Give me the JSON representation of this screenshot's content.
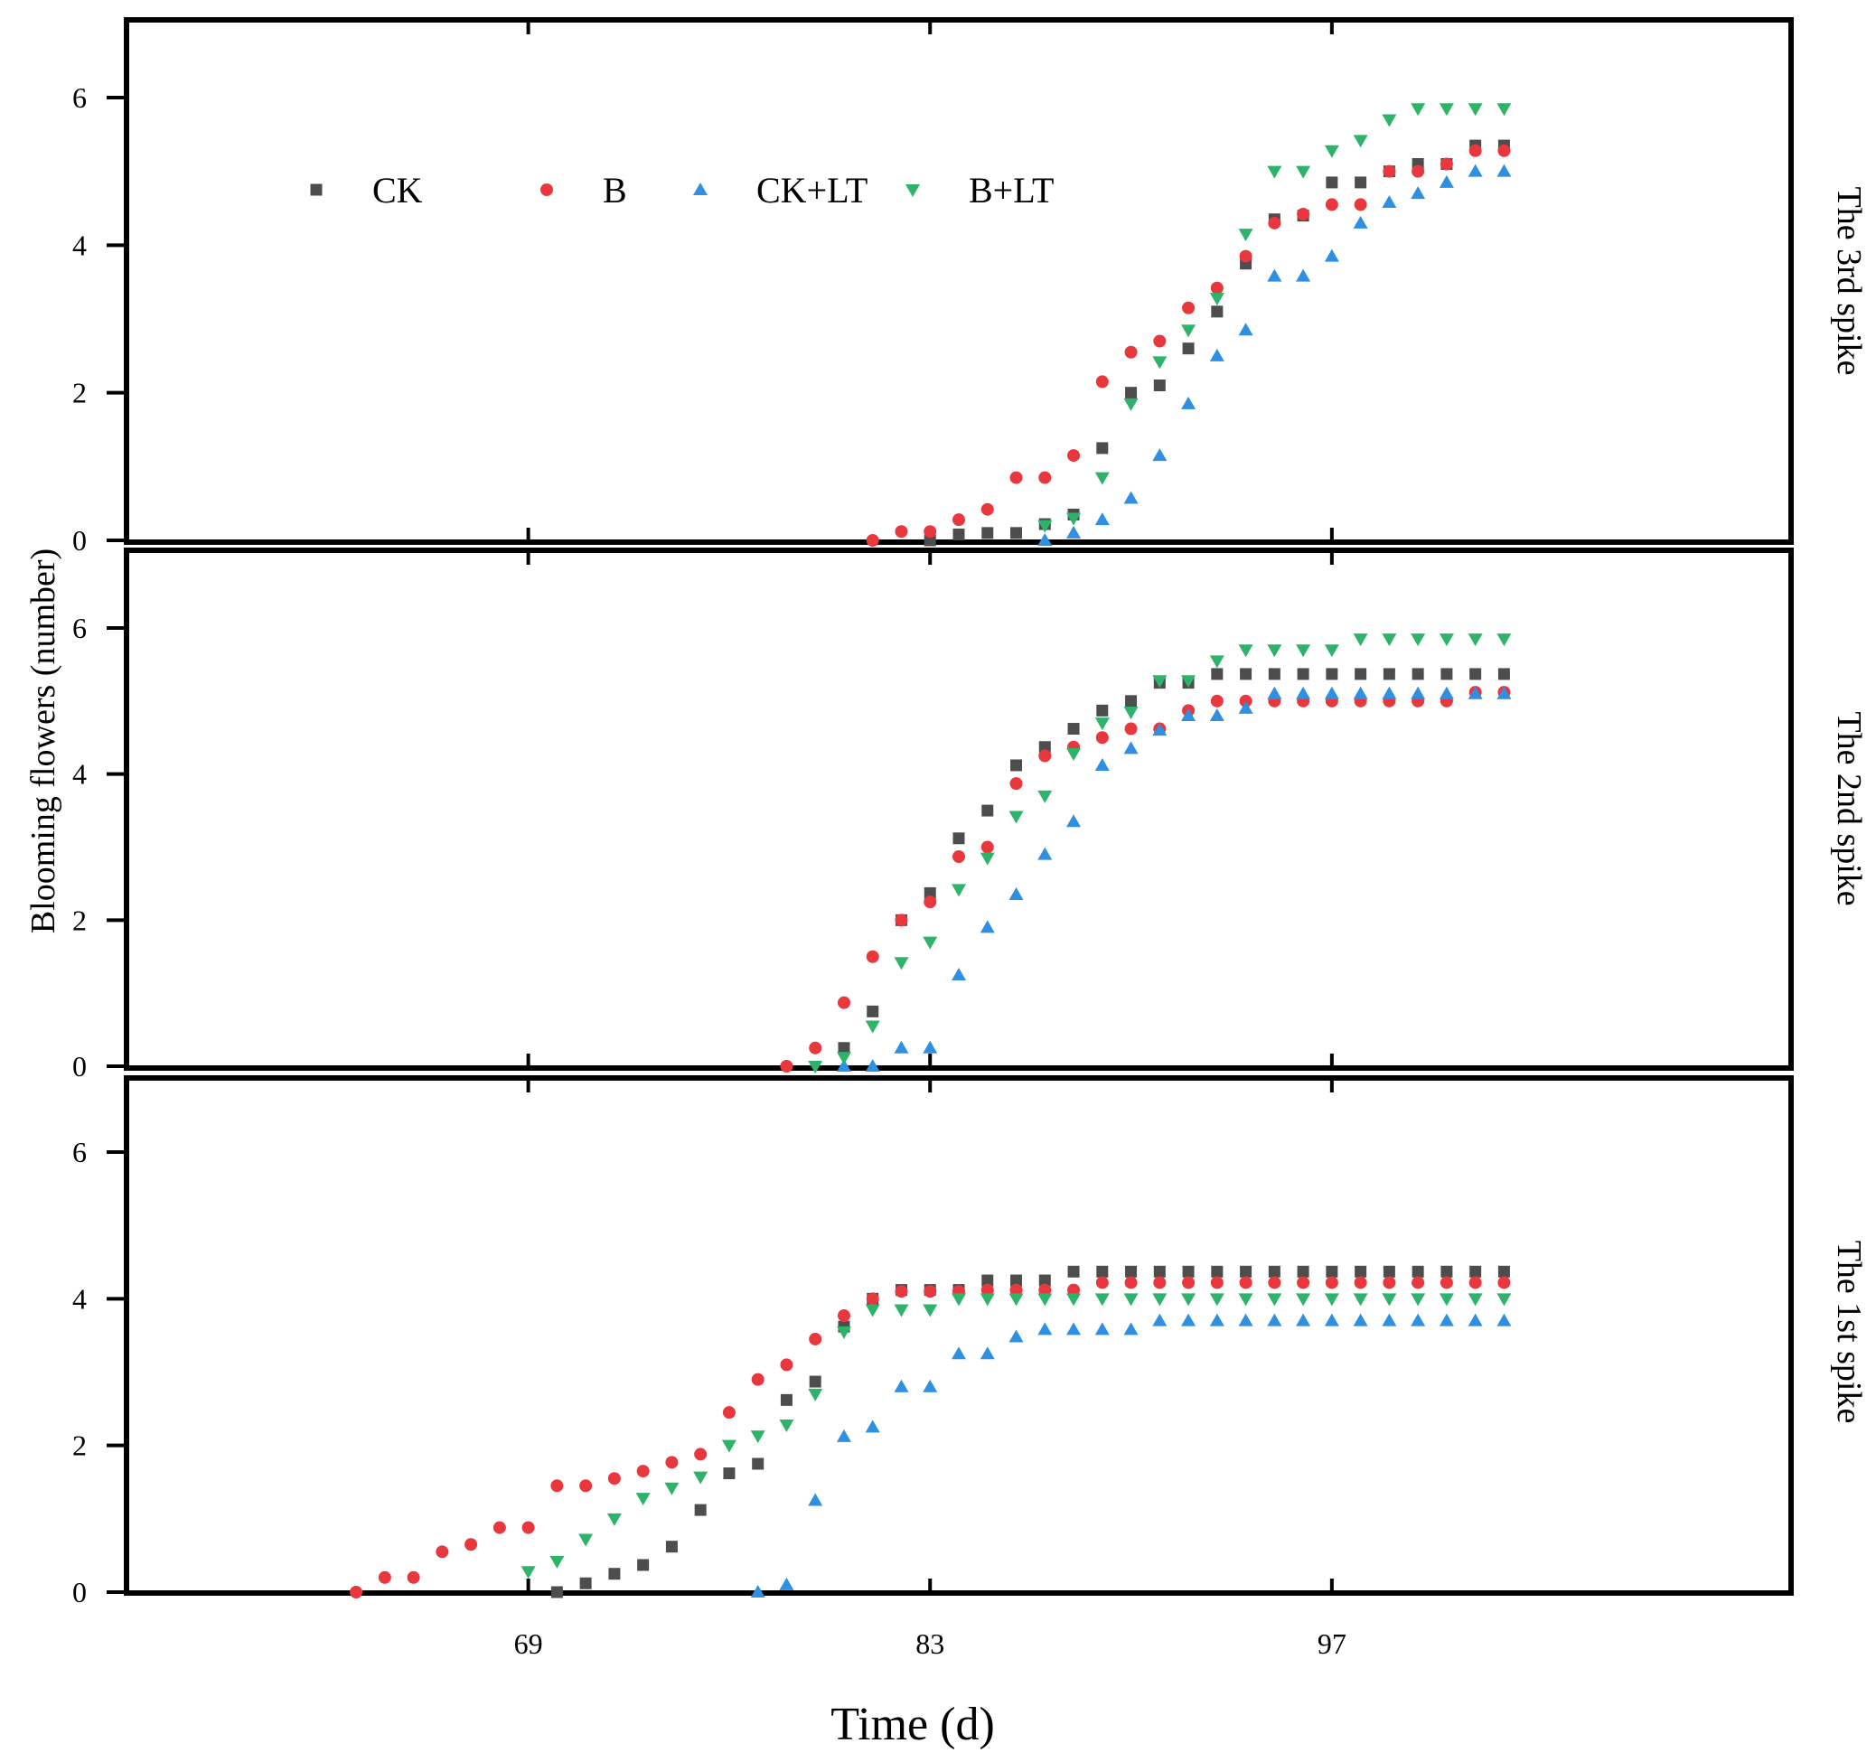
{
  "chart_data": {
    "type": "scatter",
    "xlabel": "Time (d)",
    "ylabel": "Blooming flowers (number)",
    "x_ticks": [
      69,
      83,
      97
    ],
    "xlim": [
      55,
      113
    ],
    "ylim": [
      0,
      7
    ],
    "y_ticks": [
      0,
      2,
      4,
      6
    ],
    "series_meta": [
      {
        "name": "CK",
        "color": "#4d4d4d",
        "marker": "square"
      },
      {
        "name": "B",
        "color": "#e8383d",
        "marker": "circle"
      },
      {
        "name": "CK+LT",
        "color": "#2f8fe0",
        "marker": "triangle-up"
      },
      {
        "name": "B+LT",
        "color": "#2eb36a",
        "marker": "triangle-down"
      }
    ],
    "legend": {
      "location": "top-left of top panel",
      "labels": [
        "CK",
        "B",
        "CK+LT",
        "B+LT"
      ]
    },
    "panels": [
      {
        "label": "The 3rd spike",
        "series": [
          {
            "name": "CK",
            "x": [
              83,
              84,
              85,
              86,
              87,
              88,
              89,
              90,
              91,
              92,
              93,
              94,
              95,
              96,
              97,
              98,
              99,
              100,
              101,
              102,
              103
            ],
            "y": [
              0,
              0.08,
              0.1,
              0.1,
              0.22,
              0.35,
              1.25,
              2,
              2.1,
              2.6,
              3.1,
              3.75,
              4.35,
              4.4,
              4.85,
              4.85,
              5,
              5.1,
              5.1,
              5.35,
              5.35
            ]
          },
          {
            "name": "B",
            "x": [
              81,
              82,
              83,
              84,
              85,
              86,
              87,
              88,
              89,
              90,
              91,
              92,
              93,
              94,
              95,
              96,
              97,
              98,
              99,
              100,
              101,
              102,
              103
            ],
            "y": [
              0,
              0.12,
              0.12,
              0.28,
              0.42,
              0.85,
              0.85,
              1.15,
              2.15,
              2.55,
              2.7,
              3.15,
              3.42,
              3.85,
              4.3,
              4.42,
              4.55,
              4.55,
              5,
              5,
              5.1,
              5.28,
              5.28
            ]
          },
          {
            "name": "CK+LT",
            "x": [
              87,
              88,
              89,
              90,
              91,
              92,
              93,
              94,
              95,
              96,
              97,
              98,
              99,
              100,
              101,
              102,
              103
            ],
            "y": [
              0,
              0.1,
              0.28,
              0.57,
              1.15,
              1.85,
              2.5,
              2.85,
              3.58,
              3.58,
              3.85,
              4.3,
              4.58,
              4.7,
              4.85,
              5,
              5
            ]
          },
          {
            "name": "B+LT",
            "x": [
              87,
              88,
              89,
              90,
              91,
              92,
              93,
              94,
              95,
              96,
              97,
              98,
              99,
              100,
              101,
              102,
              103
            ],
            "y": [
              0.2,
              0.3,
              0.85,
              1.85,
              2.42,
              2.85,
              3.28,
              4.15,
              5,
              5,
              5.28,
              5.42,
              5.7,
              5.85,
              5.85,
              5.85,
              5.85
            ]
          }
        ]
      },
      {
        "label": "The 2nd spike",
        "series": [
          {
            "name": "CK",
            "x": [
              80,
              81,
              82,
              83,
              84,
              85,
              86,
              87,
              88,
              89,
              90,
              91,
              92,
              93,
              94,
              95,
              96,
              97,
              98,
              99,
              100,
              101,
              102,
              103
            ],
            "y": [
              0.25,
              0.75,
              2,
              2.37,
              3.12,
              3.5,
              4.12,
              4.37,
              4.62,
              4.87,
              5,
              5.25,
              5.25,
              5.37,
              5.37,
              5.37,
              5.37,
              5.37,
              5.37,
              5.37,
              5.37,
              5.37,
              5.37,
              5.37
            ]
          },
          {
            "name": "B",
            "x": [
              78,
              79,
              80,
              81,
              82,
              83,
              84,
              85,
              86,
              87,
              88,
              89,
              90,
              91,
              92,
              93,
              94,
              95,
              96,
              97,
              98,
              99,
              100,
              101,
              102,
              103
            ],
            "y": [
              0,
              0.25,
              0.87,
              1.5,
              2,
              2.25,
              2.87,
              3,
              3.87,
              4.25,
              4.37,
              4.5,
              4.62,
              4.62,
              4.87,
              5,
              5,
              5,
              5,
              5,
              5,
              5,
              5,
              5,
              5.12,
              5.12
            ]
          },
          {
            "name": "CK+LT",
            "x": [
              80,
              81,
              82,
              83,
              84,
              85,
              86,
              87,
              88,
              89,
              90,
              91,
              92,
              93,
              94,
              95,
              96,
              97,
              98,
              99,
              100,
              101,
              102,
              103
            ],
            "y": [
              0,
              0,
              0.25,
              0.25,
              1.25,
              1.9,
              2.35,
              2.9,
              3.35,
              4.12,
              4.35,
              4.6,
              4.8,
              4.8,
              4.9,
              5.1,
              5.1,
              5.1,
              5.1,
              5.1,
              5.1,
              5.1,
              5.1,
              5.1
            ]
          },
          {
            "name": "B+LT",
            "x": [
              79,
              80,
              81,
              82,
              83,
              84,
              85,
              86,
              87,
              88,
              89,
              90,
              91,
              92,
              93,
              94,
              95,
              96,
              97,
              98,
              99,
              100,
              101,
              102,
              103
            ],
            "y": [
              0,
              0.12,
              0.55,
              1.42,
              1.7,
              2.42,
              2.85,
              3.42,
              3.7,
              4.28,
              4.7,
              4.85,
              5.28,
              5.28,
              5.55,
              5.7,
              5.7,
              5.7,
              5.7,
              5.85,
              5.85,
              5.85,
              5.85,
              5.85,
              5.85
            ]
          }
        ]
      },
      {
        "label": "The 1st spike",
        "series": [
          {
            "name": "CK",
            "x": [
              70,
              71,
              72,
              73,
              74,
              75,
              76,
              77,
              78,
              79,
              80,
              81,
              82,
              83,
              84,
              85,
              86,
              87,
              88,
              89,
              90,
              91,
              92,
              93,
              94,
              95,
              96,
              97,
              98,
              99,
              100,
              101,
              102,
              103
            ],
            "y": [
              0,
              0.12,
              0.25,
              0.37,
              0.62,
              1.12,
              1.62,
              1.75,
              2.62,
              2.87,
              3.62,
              4,
              4.12,
              4.12,
              4.12,
              4.25,
              4.25,
              4.25,
              4.37,
              4.37,
              4.37,
              4.37,
              4.37,
              4.37,
              4.37,
              4.37,
              4.37,
              4.37,
              4.37,
              4.37,
              4.37,
              4.37,
              4.37,
              4.37
            ]
          },
          {
            "name": "B",
            "x": [
              63,
              64,
              65,
              66,
              67,
              68,
              69,
              70,
              71,
              72,
              73,
              74,
              75,
              76,
              77,
              78,
              79,
              80,
              81,
              82,
              83,
              84,
              85,
              86,
              87,
              88,
              89,
              90,
              91,
              92,
              93,
              94,
              95,
              96,
              97,
              98,
              99,
              100,
              101,
              102,
              103
            ],
            "y": [
              0,
              0.2,
              0.2,
              0.55,
              0.65,
              0.88,
              0.88,
              1.45,
              1.45,
              1.55,
              1.65,
              1.77,
              1.88,
              2.45,
              2.9,
              3.1,
              3.45,
              3.77,
              4,
              4.1,
              4.1,
              4.1,
              4.12,
              4.12,
              4.12,
              4.12,
              4.22,
              4.22,
              4.22,
              4.22,
              4.22,
              4.22,
              4.22,
              4.22,
              4.22,
              4.22,
              4.22,
              4.22,
              4.22,
              4.22,
              4.22
            ]
          },
          {
            "name": "CK+LT",
            "x": [
              77,
              78,
              79,
              80,
              81,
              82,
              83,
              84,
              85,
              86,
              87,
              88,
              89,
              90,
              91,
              92,
              93,
              94,
              95,
              96,
              97,
              98,
              99,
              100,
              101,
              102,
              103
            ],
            "y": [
              0,
              0.1,
              1.25,
              2.12,
              2.25,
              2.8,
              2.8,
              3.25,
              3.25,
              3.48,
              3.58,
              3.58,
              3.58,
              3.58,
              3.7,
              3.7,
              3.7,
              3.7,
              3.7,
              3.7,
              3.7,
              3.7,
              3.7,
              3.7,
              3.7,
              3.7,
              3.7
            ]
          },
          {
            "name": "B+LT",
            "x": [
              69,
              70,
              71,
              72,
              73,
              74,
              75,
              76,
              77,
              78,
              79,
              80,
              81,
              82,
              83,
              84,
              85,
              86,
              87,
              88,
              89,
              90,
              91,
              92,
              93,
              94,
              95,
              96,
              97,
              98,
              99,
              100,
              101,
              102,
              103
            ],
            "y": [
              0.28,
              0.42,
              0.72,
              1,
              1.28,
              1.42,
              1.57,
              2,
              2.13,
              2.28,
              2.7,
              3.55,
              3.85,
              3.85,
              3.85,
              4,
              4,
              4,
              4,
              4,
              4,
              4,
              4,
              4,
              4,
              4,
              4,
              4,
              4,
              4,
              4,
              4,
              4,
              4,
              4
            ]
          }
        ]
      }
    ]
  }
}
